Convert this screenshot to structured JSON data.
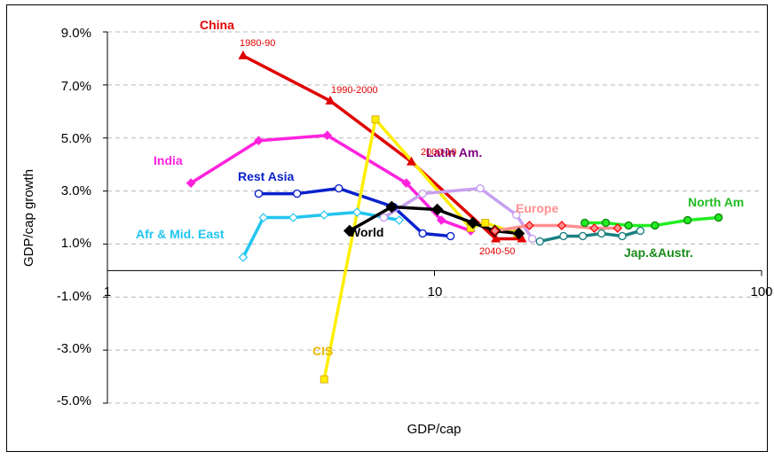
{
  "chart_data": {
    "type": "line",
    "title": "",
    "xlabel": "GDP/cap",
    "ylabel": "GDP/cap growth",
    "xscale": "log",
    "xlim": [
      1,
      100
    ],
    "ylim": [
      -0.05,
      0.09
    ],
    "x_ticks": [
      1,
      10,
      100
    ],
    "x_tick_labels": [
      "1",
      "10",
      "100"
    ],
    "y_ticks": [
      -0.05,
      -0.03,
      -0.01,
      0.01,
      0.03,
      0.05,
      0.07,
      0.09
    ],
    "y_tick_labels": [
      "-5.0%",
      "-3.0%",
      "-1.0%",
      "1.0%",
      "3.0%",
      "5.0%",
      "7.0%",
      "9.0%"
    ],
    "grid": "horizontal dashed",
    "legend": "none",
    "series": [
      {
        "name": "China",
        "color": "#e00000",
        "marker": "triangle",
        "x": [
          2.6,
          4.8,
          8.5,
          15.4,
          18.5
        ],
        "y": [
          0.081,
          0.064,
          0.041,
          0.012,
          0.012
        ]
      },
      {
        "name": "India",
        "color": "#ff22dd",
        "marker": "diamond",
        "x": [
          1.8,
          2.9,
          4.7,
          8.2,
          10.5,
          12.9
        ],
        "y": [
          0.033,
          0.049,
          0.051,
          0.033,
          0.019,
          0.015
        ]
      },
      {
        "name": "Rest Asia",
        "color": "#0a22cc",
        "marker": "circle",
        "x": [
          2.9,
          3.8,
          5.1,
          7.5,
          9.2,
          11.2
        ],
        "y": [
          0.029,
          0.029,
          0.031,
          0.024,
          0.014,
          0.013
        ]
      },
      {
        "name": "Afr & Mid. East",
        "color": "#22c5f0",
        "marker": "diamond",
        "x": [
          2.6,
          3.0,
          3.7,
          4.6,
          5.8,
          7.8
        ],
        "y": [
          0.005,
          0.02,
          0.02,
          0.021,
          0.022,
          0.019
        ]
      },
      {
        "name": "CIS",
        "color": "#ffee00",
        "marker": "square",
        "x": [
          4.6,
          6.6,
          12.9,
          14.3,
          17.9
        ],
        "y": [
          -0.041,
          0.057,
          0.016,
          0.018,
          0.014
        ]
      },
      {
        "name": "Latin Am.",
        "color": "#c8a0f0",
        "marker": "circle",
        "x": [
          7.0,
          9.2,
          13.8,
          17.8,
          19.9
        ],
        "y": [
          0.02,
          0.029,
          0.031,
          0.021,
          0.012
        ]
      },
      {
        "name": "World",
        "color": "#000000",
        "marker": "diamond",
        "x": [
          5.5,
          7.4,
          10.2,
          13.1,
          15.3,
          18.1
        ],
        "y": [
          0.015,
          0.024,
          0.023,
          0.018,
          0.015,
          0.014
        ]
      },
      {
        "name": "Europe",
        "color": "#ff9090",
        "marker": "diamond",
        "x": [
          15.3,
          19.5,
          24.5,
          30.8,
          36.3
        ],
        "y": [
          0.015,
          0.017,
          0.017,
          0.016,
          0.016
        ]
      },
      {
        "name": "North Am",
        "color": "#22ee22",
        "marker": "circle",
        "x": [
          28.8,
          33.4,
          39.2,
          47.2,
          59.4,
          73.9
        ],
        "y": [
          0.018,
          0.018,
          0.017,
          0.017,
          0.019,
          0.02
        ]
      },
      {
        "name": "Jap.&Austr.",
        "color": "#1a8080",
        "marker": "circle",
        "x": [
          21.0,
          24.8,
          28.4,
          32.4,
          37.5,
          42.6
        ],
        "y": [
          0.011,
          0.013,
          0.013,
          0.014,
          0.013,
          0.015
        ]
      }
    ],
    "labels": [
      {
        "text": "China",
        "color": "#e00000"
      },
      {
        "text": "India",
        "color": "#ff22dd"
      },
      {
        "text": "Rest Asia",
        "color": "#0a22cc"
      },
      {
        "text": "Afr & Mid. East",
        "color": "#22c5f0"
      },
      {
        "text": "CIS",
        "color": "#e8b800"
      },
      {
        "text": "Latin Am.",
        "color": "#800080"
      },
      {
        "text": "World",
        "color": "#000000"
      },
      {
        "text": "Europe",
        "color": "#ff9090"
      },
      {
        "text": "North Am",
        "color": "#22bb22"
      },
      {
        "text": "Jap.&Austr.",
        "color": "#1a8a1a"
      }
    ],
    "annotations": [
      "1980-90",
      "1990-2000",
      "2000-10",
      "2040-50"
    ]
  }
}
